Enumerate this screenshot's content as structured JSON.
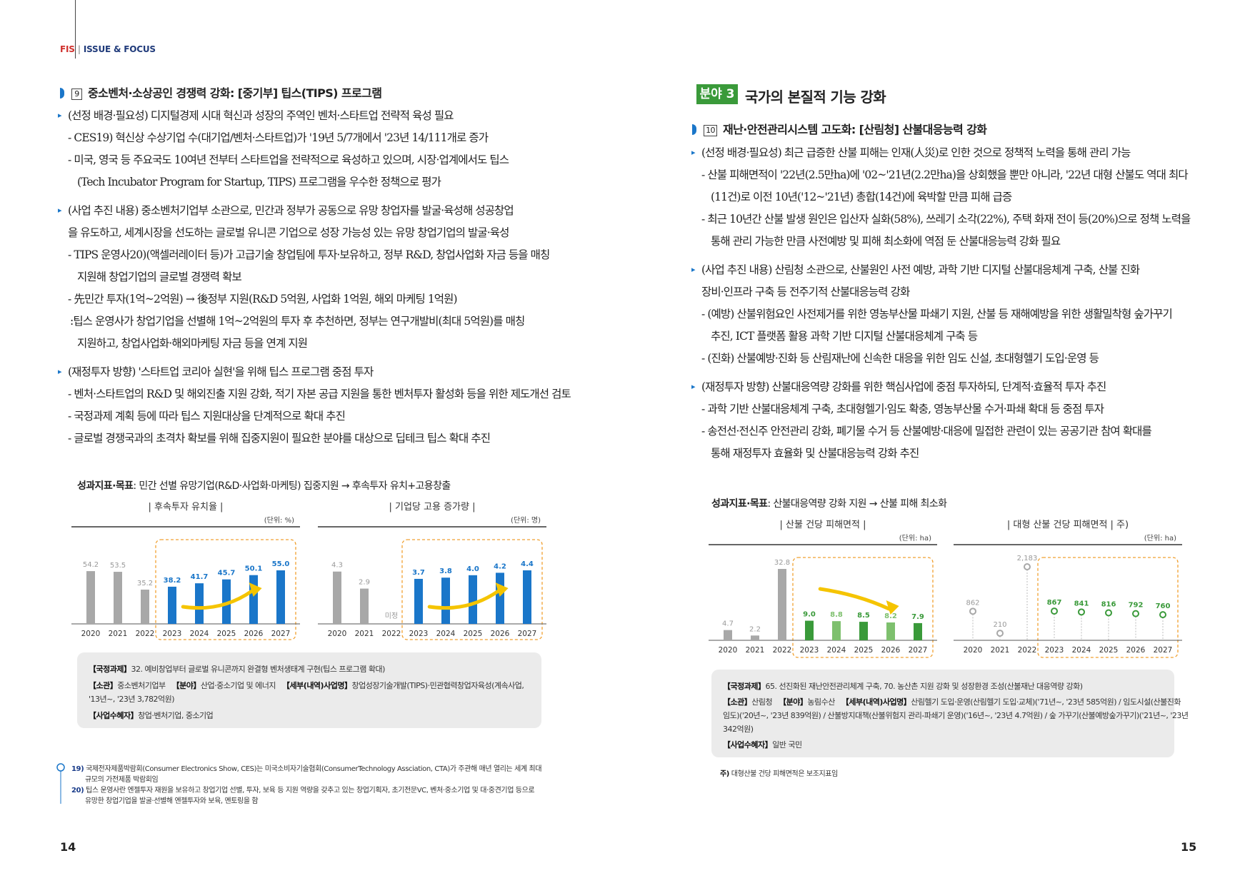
{
  "header": {
    "brand": "FIS",
    "section": "ISSUE & FOCUS"
  },
  "pages": {
    "left": "14",
    "right": "15"
  },
  "left": {
    "section": {
      "num": "9",
      "title": "중소벤처·소상공인 경쟁력 강화: [중기부] 팁스(TIPS) 프로그램"
    },
    "lines": [
      "(선정 배경·필요성) 디지털경제 시대 혁신과 성장의 주역인 벤처·스타트업 전략적 육성 필요",
      "- CES19) 혁신상 수상기업 수(대기업/벤처·스타트업)가 '19년 5/7개에서 '23년 14/111개로 증가",
      "- 미국, 영국 등 주요국도 10여년 전부터 스타트업을 전략적으로 육성하고 있으며, 시장·업계에서도 팁스",
      "(Tech Incubator Program for Startup, TIPS) 프로그램을 우수한 정책으로 평가",
      "(사업 추진 내용) 중소벤처기업부 소관으로, 민간과 정부가 공동으로 유망 창업자를 발굴·육성해 성공창업",
      "을 유도하고, 세계시장을 선도하는 글로벌 유니콘 기업으로 성장 가능성 있는 유망 창업기업의 발굴·육성",
      "- TIPS 운영사20)(액셀러레이터 등)가 고급기술 창업팀에 투자·보유하고, 정부 R&D, 창업사업화 자금 등을 매칭",
      "지원해 창업기업의 글로벌 경쟁력 확보",
      "- 先민간 투자(1억~2억원) → 後정부 지원(R&D 5억원, 사업화 1억원, 해외 마케팅 1억원)",
      ":팁스 운영사가 창업기업을 선별해 1억~2억원의 투자 후 추천하면, 정부는 연구개발비(최대 5억원)를 매칭",
      "지원하고, 창업사업화·해외마케팅 자금 등을 연계 지원",
      "(재정투자 방향) '스타트업 코리아 실현'을 위해 팁스 프로그램 중점 투자",
      "- 벤처·스타트업의 R&D 및 해외진출 지원 강화, 적기 자본 공급 지원을 통한 벤처투자 활성화 등을 위한 제도개선 검토",
      "- 국정과제 계획 등에 따라 팁스 지원대상을 단계적으로 확대 추진",
      "- 글로벌 경쟁국과의 초격차 확보를 위해 집중지원이 필요한 분야를 대상으로 딥테크 팁스 확대 추진"
    ],
    "kpi_label": "성과지표·목표",
    "kpi_text": ": 민간 선별 유망기업(R&D·사업화·마케팅) 집중지원 → 후속투자 유치+고용창출",
    "box": {
      "l1k": "【국정과제】",
      "l1": "32. 예비창업부터 글로벌 유니콘까지 완결형 벤처생태계 구현(팁스 프로그램 확대)",
      "l2k1": "【소관】",
      "l2a": "중소벤처기업부",
      "l2k2": "【분야】",
      "l2b": "산업·중소기업 및 에너지",
      "l2k3": "【세부(내역)사업명】",
      "l2c": "창업성장기술개발(TIPS)·민관협력창업자육성(계속사업,",
      "l3": "'13년~, '23년 3,782억원)",
      "l4k": "【사업수혜자】",
      "l4": "창업·벤처기업, 중소기업"
    },
    "footnotes": [
      {
        "num": "19)",
        "t1": "국제전자제품박람회(Consumer Electronics Show, CES)는 미국소비자기술협회(ConsumerTechnology Assciation, CTA)가 주관해 매년 열리는 세계 최대",
        "t2": "규모의 가전제품 박람회임"
      },
      {
        "num": "20)",
        "t1": "팁스 운영사란 엔젤투자 재원을 보유하고 창업기업 선별, 투자, 보육 등 지원 역량을 갖추고 있는 창업기획자, 초기전문VC, 벤처·중소기업 및 대·중견기업 등으로",
        "t2": "유망한 창업기업을 발굴·선별해 엔젤투자와 보육, 멘토링을 함"
      }
    ]
  },
  "right": {
    "badge": "분야 3",
    "field_title": "국가의 본질적 기능 강화",
    "section": {
      "num": "10",
      "title": "재난·안전관리시스템 고도화: [산림청] 산불대응능력 강화"
    },
    "lines": [
      "(선정 배경·필요성) 최근 급증한 산불 피해는 인재(人災)로 인한 것으로 정책적 노력을 통해 관리 가능",
      "- 산불 피해면적이 '22년(2.5만ha)에 '02~'21년(2.2만ha)을 상회했을 뿐만 아니라, '22년 대형 산불도 역대 최다",
      "(11건)로 이전 10년('12~'21년) 총합(14건)에 육박할 만큼 피해 급증",
      "- 최근 10년간 산불 발생 원인은 입산자 실화(58%), 쓰레기 소각(22%), 주택 화재 전이 등(20%)으로 정책 노력을",
      "통해 관리 가능한 만큼 사전예방 및 피해 최소화에 역점 둔 산불대응능력 강화 필요",
      "(사업 추진 내용) 산림청 소관으로, 산불원인 사전 예방, 과학 기반 디지털 산불대응체계 구축, 산불 진화",
      "장비·인프라 구축 등 전주기적 산불대응능력 강화",
      "- (예방) 산불위험요인 사전제거를 위한 영농부산물 파쇄기 지원, 산불 등 재해예방을 위한 생활밀착형 숲가꾸기",
      "추진, ICT 플랫폼 활용 과학 기반 디지털 산불대응체계 구축 등",
      "- (진화) 산불예방·진화 등 산림재난에 신속한 대응을 위한 임도 신설, 초대형헬기 도입·운영 등",
      "(재정투자 방향) 산불대응역량 강화를 위한 핵심사업에 중점 투자하되, 단계적·효율적 투자 추진",
      "- 과학 기반 산불대응체계 구축, 초대형헬기·임도 확충, 영농부산물 수거·파쇄 확대 등 중점 투자",
      "- 송전선·전신주 안전관리 강화, 폐기물 수거 등 산불예방·대응에 밀접한 관련이 있는 공공기관 참여 확대를",
      "통해 재정투자 효율화 및 산불대응능력 강화 추진"
    ],
    "kpi_label": "성과지표·목표",
    "kpi_text": ": 산불대응역량 강화 지원 → 산불 피해 최소화",
    "box": {
      "l1k": "【국정과제】",
      "l1": "65. 선진화된 재난안전관리체계 구축, 70. 농산촌 지원 강화 및 성장환경 조성(산불재난 대응역량 강화)",
      "l2k1": "【소관】",
      "l2a": "산림청",
      "l2k2": "【분야】",
      "l2b": "농림수산",
      "l2k3": "【세부(내역)사업명】",
      "l2c": "산림헬기 도입·운영(산림헬기 도입·교체)('71년~, '23년 585억원) / 임도시설(산불진화",
      "l3": "임도)('20년~, '23년 839억원) / 산불방지대책(산불위험지 관리-파쇄기 운영)('16년~, '23년 4.7억원) / 숲 가꾸기(산불예방숲가꾸기)('21년~, '23년",
      "l4": "342억원)",
      "l5k": "【사업수혜자】",
      "l5": "일반 국민"
    },
    "footnote": {
      "k": "주)",
      "t": "대형산불 건당 피해면적은 보조지표임"
    }
  },
  "chart_data": [
    {
      "type": "bar",
      "title": "| 후속투자 유치율 |",
      "unit": "(단위: %)",
      "categories": [
        "2020",
        "2021",
        "2022",
        "2023",
        "2024",
        "2025",
        "2026",
        "2027"
      ],
      "values": [
        54.2,
        53.5,
        35.2,
        38.2,
        41.7,
        45.7,
        50.1,
        55.0
      ],
      "labels": [
        "54.2",
        "53.5",
        "35.2",
        "38.2",
        "41.7",
        "45.7",
        "50.1",
        "55.0"
      ],
      "highlight_from": "2023",
      "colors": {
        "past": "#a8a8a8",
        "target": "#1a76c9"
      }
    },
    {
      "type": "bar",
      "title": "| 기업당 고용 증가량 |",
      "unit": "(단위: 명)",
      "categories": [
        "2020",
        "2021",
        "2022",
        "2023",
        "2024",
        "2025",
        "2026",
        "2027"
      ],
      "values": [
        4.3,
        2.9,
        null,
        3.7,
        3.8,
        4.0,
        4.2,
        4.4
      ],
      "labels": [
        "4.3",
        "2.9",
        "미정",
        "3.7",
        "3.8",
        "4.0",
        "4.2",
        "4.4"
      ],
      "highlight_from": "2023",
      "colors": {
        "past": "#a8a8a8",
        "target": "#1a76c9"
      }
    },
    {
      "type": "bar",
      "title": "| 산불 건당 피해면적 |",
      "unit": "(단위: ha)",
      "categories": [
        "2020",
        "2021",
        "2022",
        "2023",
        "2024",
        "2025",
        "2026",
        "2027"
      ],
      "values": [
        4.7,
        2.2,
        32.8,
        9.0,
        8.8,
        8.5,
        8.2,
        7.9
      ],
      "labels": [
        "4.7",
        "2.2",
        "32.8",
        "9.0",
        "8.8",
        "8.5",
        "8.2",
        "7.9"
      ],
      "highlight_from": "2023",
      "colors": {
        "past": "#a8a8a8",
        "target": "#3a9a3a"
      }
    },
    {
      "type": "scatter",
      "title": "| 대형 산불 건당 피해면적 | 주)",
      "unit": "(단위: ha)",
      "categories": [
        "2020",
        "2021",
        "2022",
        "2023",
        "2024",
        "2025",
        "2026",
        "2027"
      ],
      "values": [
        862,
        210,
        2183,
        867,
        841,
        816,
        792,
        760
      ],
      "labels": [
        "862",
        "210",
        "2,183",
        "867",
        "841",
        "816",
        "792",
        "760"
      ],
      "highlight_from": "2023",
      "colors": {
        "past": "#a8a8a8",
        "target": "#3a9a3a"
      }
    }
  ]
}
